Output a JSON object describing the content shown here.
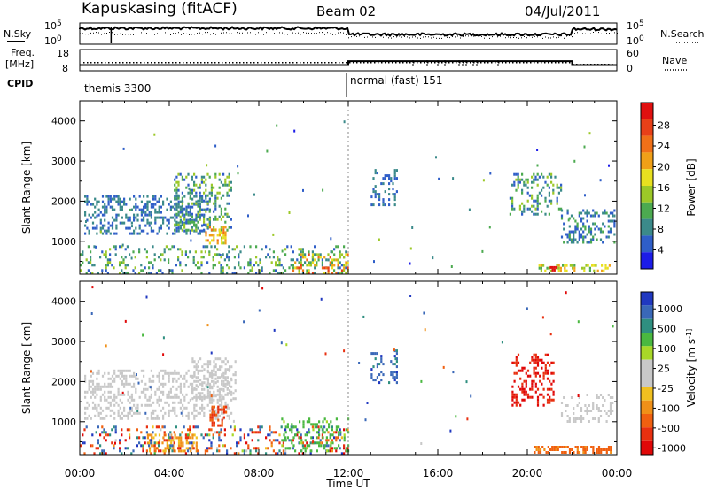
{
  "header": {
    "station": "Kapuskasing (fitACF)",
    "beam": "Beam 02",
    "date": "04/Jul/2011"
  },
  "top_panels": {
    "nsky_label": "N.Sky",
    "nsearch_label": "N.Search",
    "nsky_ticks": [
      "10^5",
      "10^0"
    ],
    "nsearch_ticks": [
      "10^5",
      "10^0"
    ],
    "freq_label_1": "Freq.",
    "freq_label_2": "[MHz]",
    "freq_ticks": [
      "18",
      "8"
    ],
    "nave_label": "Nave",
    "nave_ticks": [
      "60",
      "0"
    ],
    "cpid_label": "CPID",
    "cpid_segments": [
      {
        "label": "themis 3300",
        "start_hour": 0,
        "end_hour": 12
      },
      {
        "label": "normal (fast) 151",
        "start_hour": 12,
        "end_hour": 24
      }
    ],
    "freq_steps": [
      {
        "start_hour": 0,
        "end_hour": 12,
        "value": 10.5
      },
      {
        "start_hour": 12,
        "end_hour": 22,
        "value": 12.5
      },
      {
        "start_hour": 22,
        "end_hour": 24,
        "value": 10.5
      }
    ]
  },
  "colorbars": {
    "power": {
      "label": "Power [dB]",
      "ticks": [
        "4",
        "8",
        "12",
        "16",
        "20",
        "24",
        "28"
      ],
      "colors": [
        "#1c1ce8",
        "#2f5ec8",
        "#3b8a8a",
        "#4caa50",
        "#9cc828",
        "#e8e020",
        "#f0a018",
        "#f07018",
        "#e84018",
        "#e01010"
      ]
    },
    "velocity": {
      "label": "Velocity [m s^-1]",
      "ticks": [
        "1000",
        "500",
        "100",
        "25",
        "-25",
        "-100",
        "-500",
        "-1000"
      ],
      "colors": [
        "#2038c0",
        "#3a68b8",
        "#2f8f80",
        "#4ab840",
        "#a8d828",
        "#c8c8c8",
        "#c8c8c8",
        "#f0c020",
        "#f09018",
        "#f06010",
        "#e83010",
        "#e00808"
      ]
    }
  },
  "xaxis": {
    "label": "Time UT",
    "ticks": [
      "00:00",
      "04:00",
      "08:00",
      "12:00",
      "16:00",
      "20:00",
      "00:00"
    ]
  },
  "chart_data": [
    {
      "type": "heatmap",
      "title": "Power",
      "xlabel": "Time UT",
      "ylabel": "Slant Range [km]",
      "xlim_hours": [
        0,
        24
      ],
      "ylim": [
        180,
        4500
      ],
      "yticks": [
        "1000",
        "2000",
        "3000",
        "4000"
      ],
      "colorbar_label": "Power [dB]",
      "colorbar_range": [
        0,
        30
      ],
      "regions": [
        {
          "name": "early-broad",
          "t": [
            0.2,
            5.8
          ],
          "r": [
            1200,
            2150
          ],
          "density": 0.65,
          "level": [
            3,
            9
          ]
        },
        {
          "name": "rising-arm",
          "t": [
            4.2,
            6.8
          ],
          "r": [
            1300,
            2700
          ],
          "density": 0.6,
          "level": [
            4,
            15
          ]
        },
        {
          "name": "hot-spot",
          "t": [
            5.6,
            6.5
          ],
          "r": [
            950,
            1450
          ],
          "density": 0.8,
          "level": [
            14,
            22
          ]
        },
        {
          "name": "near-range-early",
          "t": [
            0,
            12
          ],
          "r": [
            200,
            900
          ],
          "density": 0.35,
          "level": [
            4,
            14
          ]
        },
        {
          "name": "near-range-late",
          "t": [
            9.5,
            12
          ],
          "r": [
            220,
            700
          ],
          "density": 0.6,
          "level": [
            8,
            26
          ]
        },
        {
          "name": "dawn-patch",
          "t": [
            13.0,
            14.2
          ],
          "r": [
            1900,
            2800
          ],
          "density": 0.45,
          "level": [
            3,
            9
          ]
        },
        {
          "name": "evening-arcs",
          "t": [
            19.2,
            21.5
          ],
          "r": [
            1700,
            2700
          ],
          "density": 0.5,
          "level": [
            4,
            14
          ]
        },
        {
          "name": "late-band",
          "t": [
            21.5,
            23.9
          ],
          "r": [
            1000,
            1800
          ],
          "density": 0.55,
          "level": [
            3,
            10
          ]
        },
        {
          "name": "groundscatter-late",
          "t": [
            20.5,
            23.7
          ],
          "r": [
            260,
            430
          ],
          "density": 0.85,
          "level": [
            10,
            20
          ]
        },
        {
          "name": "red-blob",
          "t": [
            21.0,
            21.3
          ],
          "r": [
            250,
            380
          ],
          "density": 0.9,
          "level": [
            27,
            30
          ]
        }
      ]
    },
    {
      "type": "heatmap",
      "title": "Velocity",
      "xlabel": "Time UT",
      "ylabel": "Slant Range [km]",
      "xlim_hours": [
        0,
        24
      ],
      "ylim": [
        180,
        4500
      ],
      "yticks": [
        "1000",
        "2000",
        "3000",
        "4000"
      ],
      "colorbar_label": "Velocity [m s^-1]",
      "colorbar_range": [
        -1000,
        1000
      ],
      "regions": [
        {
          "name": "gray-band",
          "t": [
            0.2,
            6.8
          ],
          "r": [
            1100,
            2300
          ],
          "density": 0.65,
          "vel": [
            -25,
            25
          ]
        },
        {
          "name": "gray-arm",
          "t": [
            5.0,
            7.0
          ],
          "r": [
            1600,
            2600
          ],
          "density": 0.55,
          "vel": [
            -25,
            25
          ]
        },
        {
          "name": "orange-spot",
          "t": [
            5.8,
            6.5
          ],
          "r": [
            900,
            1400
          ],
          "density": 0.85,
          "vel": [
            -600,
            -200
          ]
        },
        {
          "name": "yellow-patches",
          "t": [
            3.0,
            5.2
          ],
          "r": [
            300,
            700
          ],
          "density": 0.8,
          "vel": [
            -90,
            -40
          ]
        },
        {
          "name": "near-range-mixed",
          "t": [
            0,
            12
          ],
          "r": [
            200,
            900
          ],
          "density": 0.4,
          "vel": [
            -1000,
            1000
          ]
        },
        {
          "name": "green-col",
          "t": [
            9.0,
            12
          ],
          "r": [
            300,
            1100
          ],
          "density": 0.45,
          "vel": [
            50,
            150
          ]
        },
        {
          "name": "dawn-blue",
          "t": [
            13.0,
            14.2
          ],
          "r": [
            1900,
            2800
          ],
          "density": 0.45,
          "vel": [
            300,
            900
          ]
        },
        {
          "name": "red-arcs",
          "t": [
            19.3,
            21.2
          ],
          "r": [
            1400,
            2700
          ],
          "density": 0.6,
          "vel": [
            -1000,
            -600
          ]
        },
        {
          "name": "gray-late",
          "t": [
            21.5,
            23.8
          ],
          "r": [
            1000,
            1700
          ],
          "density": 0.5,
          "vel": [
            -25,
            25
          ]
        },
        {
          "name": "orange-gs",
          "t": [
            20.2,
            23.7
          ],
          "r": [
            250,
            400
          ],
          "density": 0.9,
          "vel": [
            -300,
            -120
          ]
        }
      ]
    }
  ]
}
